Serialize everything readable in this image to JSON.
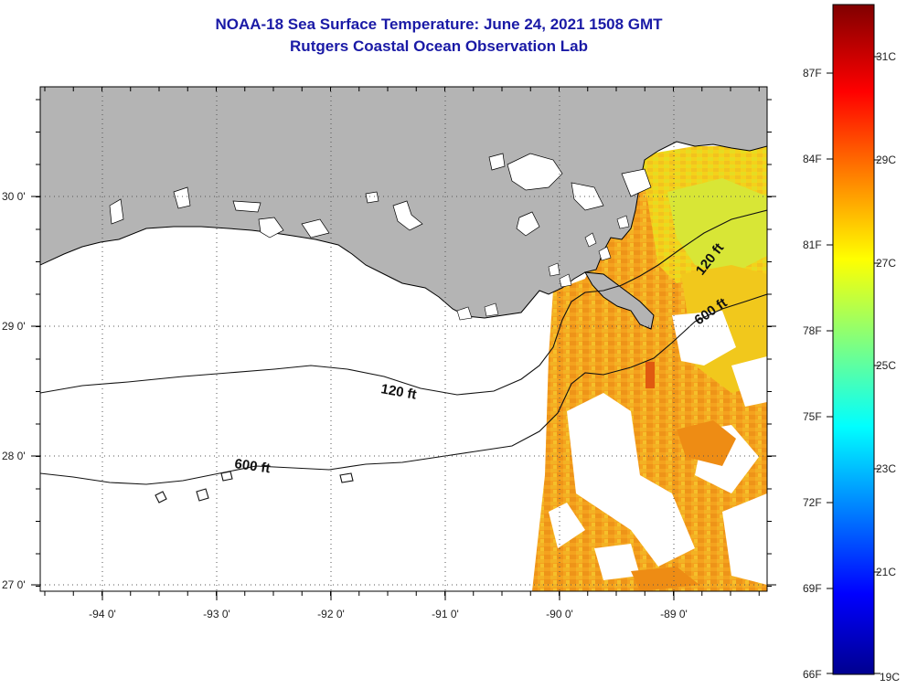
{
  "title": {
    "line1": "NOAA-18 Sea Surface Temperature:  June 24, 2021 1508 GMT",
    "line2": "Rutgers Coastal Ocean Observation Lab"
  },
  "map": {
    "longitude_ticks": [
      "-94 0'",
      "-93 0'",
      "-92 0'",
      "-91 0'",
      "-90 0'",
      "-89 0'"
    ],
    "latitude_ticks": [
      "30 0'",
      "29 0'",
      "28 0'",
      "27 0'"
    ],
    "contour_labels": [
      "120 ft",
      "120 ft",
      "600 ft",
      "600 ft"
    ],
    "colors": {
      "land": "#b4b4b4",
      "no_data": "#ffffff",
      "sst_orange": "#f5a21e",
      "sst_yellow": "#f4d21a",
      "sst_green_yellow": "#c8e83a",
      "grid": "#555555"
    }
  },
  "colorbar": {
    "fahrenheit_labels": [
      "87F",
      "84F",
      "81F",
      "78F",
      "75F",
      "72F",
      "69F",
      "66F"
    ],
    "celsius_labels": [
      "31C",
      "29C",
      "27C",
      "25C",
      "23C",
      "21C",
      "19C"
    ],
    "range_celsius": [
      19,
      32
    ],
    "colormap": "jet"
  }
}
